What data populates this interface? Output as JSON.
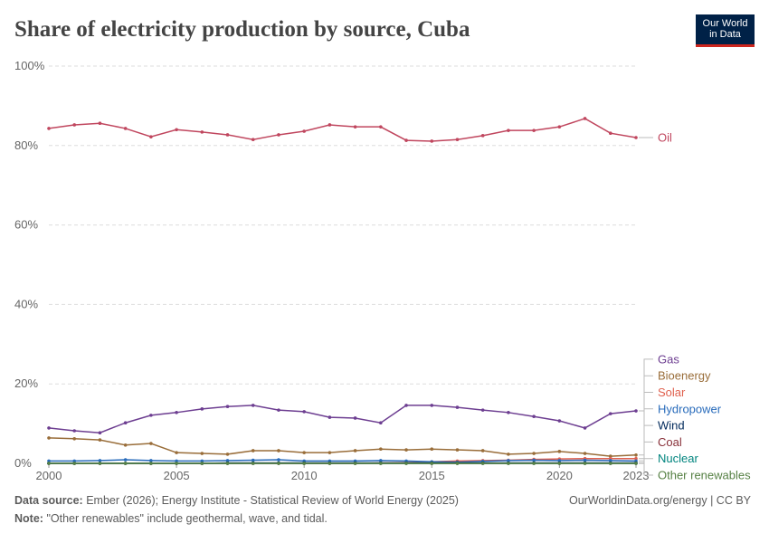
{
  "chart_data": {
    "type": "line",
    "title": "Share of electricity production by source, Cuba",
    "logo": "Our World in Data",
    "source_label": "Data source:",
    "source": "Ember (2026); Energy Institute - Statistical Review of World Energy (2025)",
    "credit": "OurWorldinData.org/energy | CC BY",
    "note_label": "Note:",
    "note": "\"Other renewables\" include geothermal, wave, and tidal.",
    "x": [
      2000,
      2001,
      2002,
      2003,
      2004,
      2005,
      2006,
      2007,
      2008,
      2009,
      2010,
      2011,
      2012,
      2013,
      2014,
      2015,
      2016,
      2017,
      2018,
      2019,
      2020,
      2021,
      2022,
      2023
    ],
    "xlim": [
      2000,
      2023
    ],
    "xticks": [
      2000,
      2005,
      2010,
      2015,
      2020,
      2023
    ],
    "ylim": [
      0,
      100
    ],
    "yticks": [
      {
        "value": 0,
        "label": "0%"
      },
      {
        "value": 20,
        "label": "20%"
      },
      {
        "value": 40,
        "label": "40%"
      },
      {
        "value": 60,
        "label": "60%"
      },
      {
        "value": 80,
        "label": "80%"
      },
      {
        "value": 100,
        "label": "100%"
      }
    ],
    "grid": true,
    "series": [
      {
        "name": "Oil",
        "color": "#c0465e",
        "values": [
          84.3,
          85.2,
          85.6,
          84.3,
          82.2,
          84.0,
          83.4,
          82.7,
          81.5,
          82.7,
          83.6,
          85.2,
          84.7,
          84.7,
          81.3,
          81.1,
          81.5,
          82.5,
          83.8,
          83.8,
          84.7,
          86.8,
          83.1,
          82.0
        ]
      },
      {
        "name": "Gas",
        "color": "#6d3e91",
        "values": [
          8.9,
          8.2,
          7.7,
          10.2,
          12.1,
          12.8,
          13.7,
          14.3,
          14.6,
          13.4,
          13.0,
          11.6,
          11.4,
          10.2,
          14.6,
          14.6,
          14.1,
          13.4,
          12.8,
          11.8,
          10.7,
          8.9,
          12.5,
          13.2
        ]
      },
      {
        "name": "Bioenergy",
        "color": "#996d39",
        "values": [
          6.4,
          6.2,
          5.9,
          4.6,
          5.0,
          2.7,
          2.5,
          2.3,
          3.2,
          3.2,
          2.7,
          2.7,
          3.2,
          3.6,
          3.4,
          3.6,
          3.4,
          3.2,
          2.3,
          2.5,
          3.0,
          2.5,
          1.8,
          2.1
        ]
      },
      {
        "name": "Solar",
        "color": "#e0614f",
        "values": [
          0,
          0,
          0,
          0,
          0,
          0,
          0,
          0,
          0,
          0,
          0,
          0,
          0,
          0.1,
          0.2,
          0.4,
          0.6,
          0.7,
          0.8,
          1.0,
          1.1,
          1.2,
          1.2,
          1.2
        ]
      },
      {
        "name": "Hydropower",
        "color": "#286bbb",
        "values": [
          0.6,
          0.6,
          0.7,
          0.9,
          0.7,
          0.6,
          0.6,
          0.7,
          0.8,
          0.9,
          0.6,
          0.6,
          0.6,
          0.7,
          0.6,
          0.4,
          0.3,
          0.5,
          0.7,
          0.8,
          0.7,
          0.8,
          0.7,
          0.6
        ]
      },
      {
        "name": "Wind",
        "color": "#00295b",
        "values": [
          0,
          0,
          0,
          0,
          0,
          0,
          0,
          0.1,
          0.1,
          0.1,
          0.1,
          0.1,
          0.1,
          0.1,
          0.1,
          0.1,
          0.1,
          0.1,
          0.1,
          0.1,
          0.1,
          0.1,
          0.1,
          0.1
        ]
      },
      {
        "name": "Coal",
        "color": "#883039",
        "values": [
          0,
          0,
          0,
          0,
          0,
          0,
          0,
          0,
          0,
          0,
          0,
          0,
          0,
          0,
          0,
          0,
          0,
          0,
          0,
          0,
          0,
          0,
          0,
          0
        ]
      },
      {
        "name": "Nuclear",
        "color": "#00847e",
        "values": [
          0,
          0,
          0,
          0,
          0,
          0,
          0,
          0,
          0,
          0,
          0,
          0,
          0,
          0,
          0,
          0,
          0,
          0,
          0,
          0,
          0,
          0,
          0,
          0
        ]
      },
      {
        "name": "Other renewables",
        "color": "#578145",
        "values": [
          0,
          0,
          0,
          0,
          0,
          0,
          0,
          0,
          0,
          0,
          0,
          0,
          0,
          0,
          0,
          0,
          0,
          0,
          0,
          0,
          0,
          0,
          0,
          0
        ]
      }
    ]
  }
}
